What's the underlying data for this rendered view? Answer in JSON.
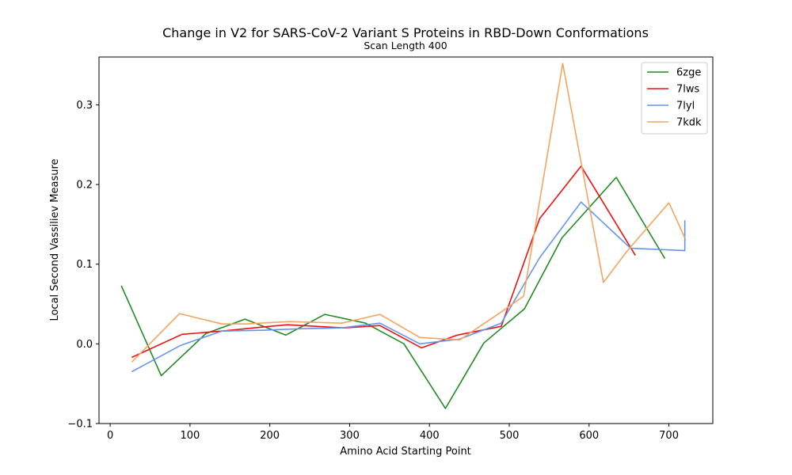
{
  "chart_data": {
    "type": "line",
    "title": "Change in V2 for SARS-CoV-2 Variant S Proteins in RBD-Down Conformations",
    "subtitle": "Scan Length 400",
    "xlabel": "Amino Acid Starting Point",
    "ylabel": "Local Second Vassiliev Measure",
    "xlim": [
      -14,
      755
    ],
    "ylim": [
      -0.1,
      0.36
    ],
    "xticks": [
      0,
      100,
      200,
      300,
      400,
      500,
      600,
      700
    ],
    "xtick_labels": [
      "0",
      "100",
      "200",
      "300",
      "400",
      "500",
      "600",
      "700"
    ],
    "yticks": [
      -0.1,
      0.0,
      0.1,
      0.2,
      0.3
    ],
    "ytick_labels": [
      "−0.1",
      "0.0",
      "0.1",
      "0.2",
      "0.3"
    ],
    "grid": false,
    "legend_position": "top-right",
    "series": [
      {
        "name": "6zge",
        "color": "#228B22",
        "x": [
          14,
          64,
          120,
          169,
          220,
          269,
          320,
          368,
          420,
          468,
          519,
          566,
          634,
          695
        ],
        "y": [
          0.073,
          -0.04,
          0.013,
          0.031,
          0.011,
          0.037,
          0.026,
          0.0,
          -0.081,
          0.001,
          0.044,
          0.133,
          0.209,
          0.107
        ]
      },
      {
        "name": "7lws",
        "color": "#ee1111",
        "x": [
          27,
          90,
          140,
          190,
          222,
          275,
          293,
          338,
          390,
          435,
          490,
          538,
          590,
          658
        ],
        "y": [
          -0.017,
          0.012,
          0.016,
          0.021,
          0.024,
          0.021,
          0.02,
          0.023,
          -0.005,
          0.011,
          0.022,
          0.157,
          0.223,
          0.111
        ]
      },
      {
        "name": "7lyl",
        "color": "#6495ED",
        "x": [
          27,
          88,
          140,
          190,
          240,
          290,
          338,
          388,
          438,
          490,
          538,
          590,
          652,
          720,
          720
        ],
        "y": [
          -0.035,
          -0.002,
          0.016,
          0.017,
          0.019,
          0.02,
          0.026,
          0.0,
          0.006,
          0.026,
          0.108,
          0.178,
          0.12,
          0.117,
          0.155
        ]
      },
      {
        "name": "7kdk",
        "color": "#f4a460",
        "x": [
          27,
          87,
          140,
          170,
          225,
          290,
          338,
          388,
          438,
          490,
          518,
          567,
          618,
          648,
          700,
          720
        ],
        "y": [
          -0.023,
          0.038,
          0.025,
          0.025,
          0.028,
          0.026,
          0.037,
          0.008,
          0.005,
          0.04,
          0.06,
          0.352,
          0.077,
          0.117,
          0.177,
          0.133
        ]
      }
    ]
  }
}
